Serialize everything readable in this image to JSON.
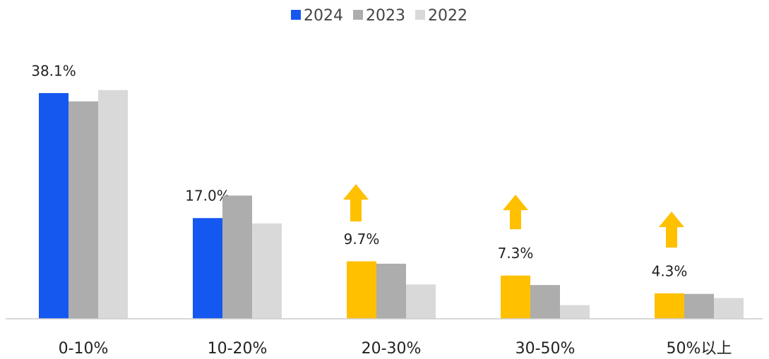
{
  "chart_data": {
    "type": "bar",
    "categories": [
      "0-10%",
      "10-20%",
      "20-30%",
      "30-50%",
      "50%以上"
    ],
    "series": [
      {
        "name": "2024",
        "color": "#1558f0",
        "colors": [
          "#1558f0",
          "#1558f0",
          "#ffc000",
          "#ffc000",
          "#ffc000"
        ],
        "values": [
          38.1,
          17.0,
          9.7,
          7.3,
          4.3
        ],
        "value_labels": [
          "38.1%",
          "17.0%",
          "9.7%",
          "7.3%",
          "4.3%"
        ]
      },
      {
        "name": "2023",
        "color": "#adadad",
        "values": [
          36.7,
          20.8,
          9.3,
          5.7,
          4.2
        ]
      },
      {
        "name": "2022",
        "color": "#d9d9d9",
        "values": [
          38.6,
          16.1,
          5.8,
          2.3,
          3.5
        ]
      }
    ],
    "ylim": [
      0,
      40
    ],
    "legend": "top"
  }
}
